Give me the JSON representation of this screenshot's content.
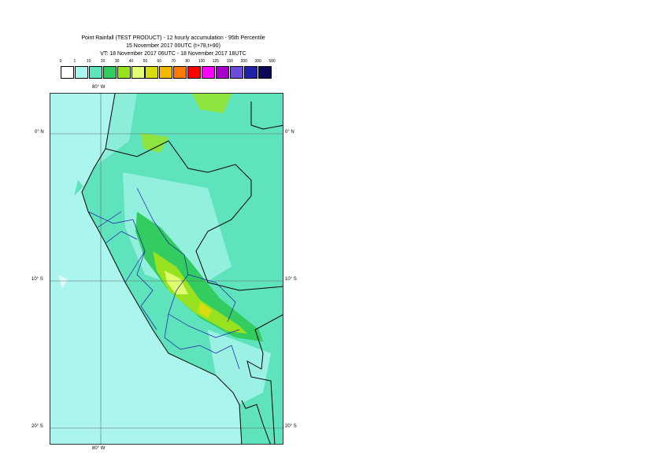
{
  "title": {
    "line1": "Point Rainfall (TEST PRODUCT) - 12 hourly accumulation - 95th Percentile",
    "line2": "15 November 2017 00UTC (t+78,t+90)",
    "line3": "VT: 18 November 2017 06UTC - 18 November 2017 18UTC"
  },
  "legend": {
    "labels": [
      "0",
      "1",
      "10",
      "20",
      "30",
      "40",
      "50",
      "60",
      "70",
      "80",
      "100",
      "125",
      "150",
      "200",
      "300",
      "500"
    ],
    "colors": [
      "#ffffff",
      "#aaf5ee",
      "#5fe3bc",
      "#32cc60",
      "#99e21f",
      "#e0ff70",
      "#d8dd12",
      "#f5b800",
      "#ff7a00",
      "#ff0000",
      "#ff00ff",
      "#aa00cc",
      "#6a4ddd",
      "#1f22a8",
      "#0a0a55"
    ]
  },
  "map": {
    "lon_labels": [
      "80° W",
      "80° W"
    ],
    "lat_labels_left": [
      "0° N",
      "10° S",
      "20° S"
    ],
    "lat_labels_right": [
      "0° N",
      "10° S",
      "20° S"
    ],
    "ocean_color": "#aaf5ee",
    "land_color": "#5fe3bc",
    "political_border_color": "#000000",
    "admin_border_color": "#1a1aa8"
  }
}
